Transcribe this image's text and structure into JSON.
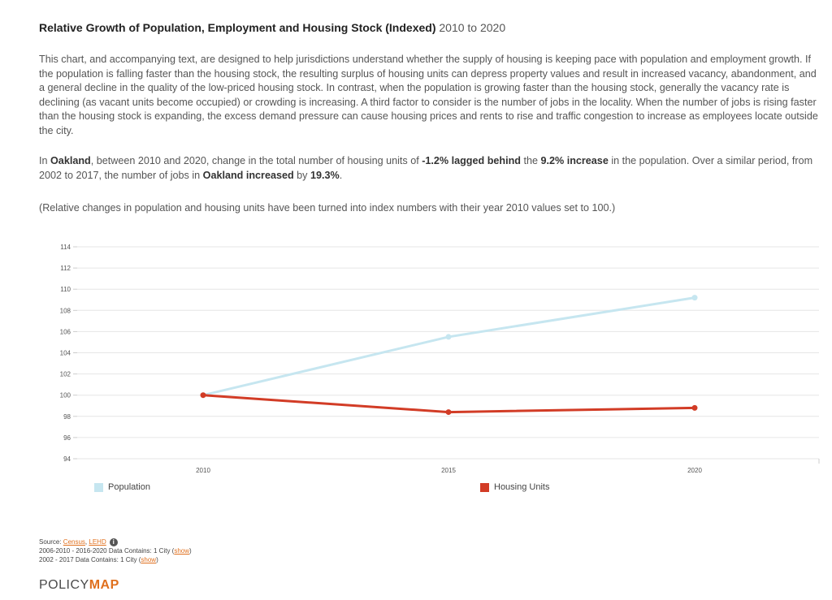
{
  "header": {
    "title_bold": "Relative Growth of Population, Employment and Housing Stock (Indexed)",
    "title_range": "2010 to 2020"
  },
  "description": "This chart, and accompanying text, are designed to help jurisdictions understand whether the supply of housing is keeping pace with population and employment growth. If the population is falling faster than the housing stock, the resulting surplus of housing units can depress property values and result in increased vacancy, abandonment, and a general decline in the quality of the low-priced housing stock. In contrast, when the population is growing faster than the housing stock, generally the vacancy rate is declining (as vacant units become occupied) or crowding is increasing. A third factor to consider is the number of jobs in the locality. When the number of jobs is rising faster than the housing stock is expanding, the excess demand pressure can cause housing prices and rents to rise and traffic congestion to increase as employees locate outside the city.",
  "summary": {
    "p1": "In ",
    "place": "Oakland",
    "p2": ", between 2010 and 2020, change in the total number of housing units of ",
    "housing_change": "-1.2% lagged behind",
    "p3": " the ",
    "pop_change": "9.2% increase",
    "p4": " in the population. Over a similar period, from 2002 to 2017, the number of jobs in ",
    "jobs_place": "Oakland increased",
    "p5": " by ",
    "jobs_change": "19.3%",
    "p6": "."
  },
  "note": "(Relative changes in population and housing units have been turned into index numbers with their year 2010 values set to 100.)",
  "chart_data": {
    "type": "line",
    "x": [
      "2010",
      "2015",
      "2020"
    ],
    "ylim": [
      94,
      114
    ],
    "yticks": [
      "94",
      "96",
      "98",
      "100",
      "102",
      "104",
      "106",
      "108",
      "110",
      "112",
      "114"
    ],
    "series": [
      {
        "name": "Population",
        "color": "#c6e6f0",
        "values": [
          100,
          105.5,
          109.2
        ]
      },
      {
        "name": "Housing Units",
        "color": "#d23c26",
        "values": [
          100,
          98.4,
          98.8
        ]
      }
    ],
    "grid": true,
    "legend": "bottom"
  },
  "footer": {
    "source_label": "Source: ",
    "source_census": "Census",
    "source_sep": ", ",
    "source_lehd": "LEHD",
    "line2_text": "2006-2010 - 2016-2020 Data Contains: 1 City (",
    "line2_link": "show",
    "line2_end": ")",
    "line3_text": "2002 - 2017 Data Contains: 1 City (",
    "line3_link": "show",
    "line3_end": ")"
  },
  "logo": {
    "policy": "POLICY",
    "map": "MAP"
  },
  "icons": {
    "info": "info-icon"
  }
}
